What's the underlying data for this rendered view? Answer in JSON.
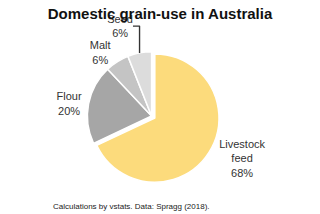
{
  "chart_data": {
    "type": "pie",
    "title": "Domestic grain-use in Australia",
    "categories": [
      "Livestock feed",
      "Flour",
      "Malt",
      "Seed"
    ],
    "values": [
      68,
      20,
      6,
      6
    ],
    "value_labels": [
      "68%",
      "20%",
      "6%",
      "6%"
    ],
    "colors": [
      "#fcdb7c",
      "#a6a6a6",
      "#c4c4c4",
      "#dcdcdc"
    ],
    "data_labels": true,
    "annotations": [
      "Calculations by vstats. Data: Spragg (2018)."
    ]
  }
}
